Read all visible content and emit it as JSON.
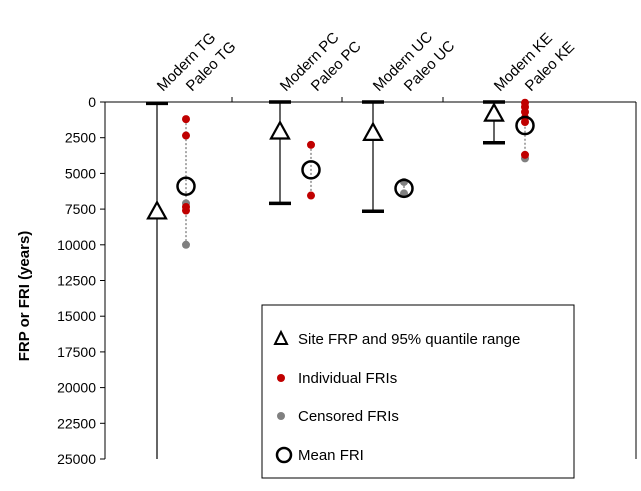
{
  "chart_data": {
    "type": "scatter",
    "title": "",
    "xlabel": "",
    "ylabel": "FRP or FRI (years)",
    "ylim": [
      0,
      25000
    ],
    "y_inverted": true,
    "y_ticks": [
      "0",
      "2500",
      "5000",
      "7500",
      "10000",
      "12500",
      "15000",
      "17500",
      "20000",
      "22500",
      "25000"
    ],
    "categories": [
      "Modern TG",
      "Paleo TG",
      "Modern PC",
      "Paleo PC",
      "Modern UC",
      "Paleo UC",
      "Modern KE",
      "Paleo KE"
    ],
    "modern_frp": [
      {
        "category": "Modern TG",
        "frp": 7650,
        "low": 100,
        "high": 25000,
        "cap_low": true,
        "cap_high": false
      },
      {
        "category": "Modern PC",
        "frp": 2050,
        "low": 0,
        "high": 7100,
        "cap_low": true,
        "cap_high": true
      },
      {
        "category": "Modern UC",
        "frp": 2150,
        "low": 0,
        "high": 7650,
        "cap_low": true,
        "cap_high": true
      },
      {
        "category": "Modern KE",
        "frp": 800,
        "low": 0,
        "high": 2850,
        "cap_low": true,
        "cap_high": true
      }
    ],
    "paleo": [
      {
        "category": "Paleo TG",
        "mean": 5900,
        "individual": [
          1200,
          2350,
          7350,
          7600
        ],
        "censored": [
          7100,
          10000
        ]
      },
      {
        "category": "Paleo PC",
        "mean": 4750,
        "individual": [
          3000,
          6550
        ],
        "censored": []
      },
      {
        "category": "Paleo UC",
        "mean": 6050,
        "individual": [],
        "censored": [
          5600,
          6400
        ]
      },
      {
        "category": "Paleo KE",
        "mean": 1650,
        "individual": [
          50,
          350,
          700,
          1100,
          1400,
          3700
        ],
        "censored": [
          3950
        ]
      }
    ],
    "legend": {
      "position": "inside-lower-right",
      "entries": [
        {
          "label": "Site FRP and 95% quantile range",
          "symbol": "triangle-open"
        },
        {
          "label": "Individual FRIs",
          "symbol": "dot-red"
        },
        {
          "label": "Censored FRIs",
          "symbol": "dot-gray"
        },
        {
          "label": "Mean FRI",
          "symbol": "circle-open"
        }
      ]
    },
    "colors": {
      "individual": "#c00000",
      "censored": "#808080",
      "axis": "#000000"
    }
  }
}
